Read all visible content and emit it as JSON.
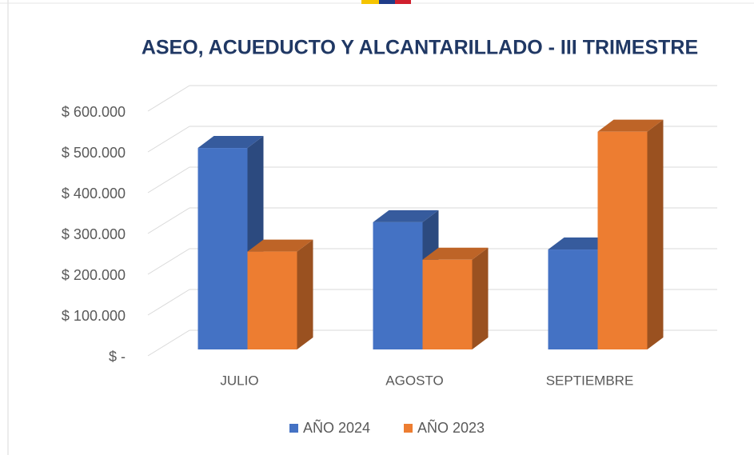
{
  "chart_data": {
    "type": "bar3d",
    "title": "ASEO, ACUEDUCTO Y ALCANTARILLADO - III TRIMESTRE",
    "categories": [
      "JULIO",
      "AGOSTO",
      "SEPTIEMBRE"
    ],
    "series": [
      {
        "name": "AÑO 2024",
        "color": "#4472c4",
        "values": [
          494000,
          312000,
          245000
        ]
      },
      {
        "name": "AÑO 2023",
        "color": "#ed7d31",
        "values": [
          240000,
          220000,
          534000
        ]
      }
    ],
    "ylim": [
      0,
      600000
    ],
    "yticks": [
      {
        "value": 0,
        "label": "$ -"
      },
      {
        "value": 100000,
        "label": "$ 100.000"
      },
      {
        "value": 200000,
        "label": "$ 200.000"
      },
      {
        "value": 300000,
        "label": "$ 300.000"
      },
      {
        "value": 400000,
        "label": "$ 400.000"
      },
      {
        "value": 500000,
        "label": "$ 500.000"
      },
      {
        "value": 600000,
        "label": "$ 600.000"
      }
    ],
    "grid": true,
    "legend": "bottom"
  }
}
